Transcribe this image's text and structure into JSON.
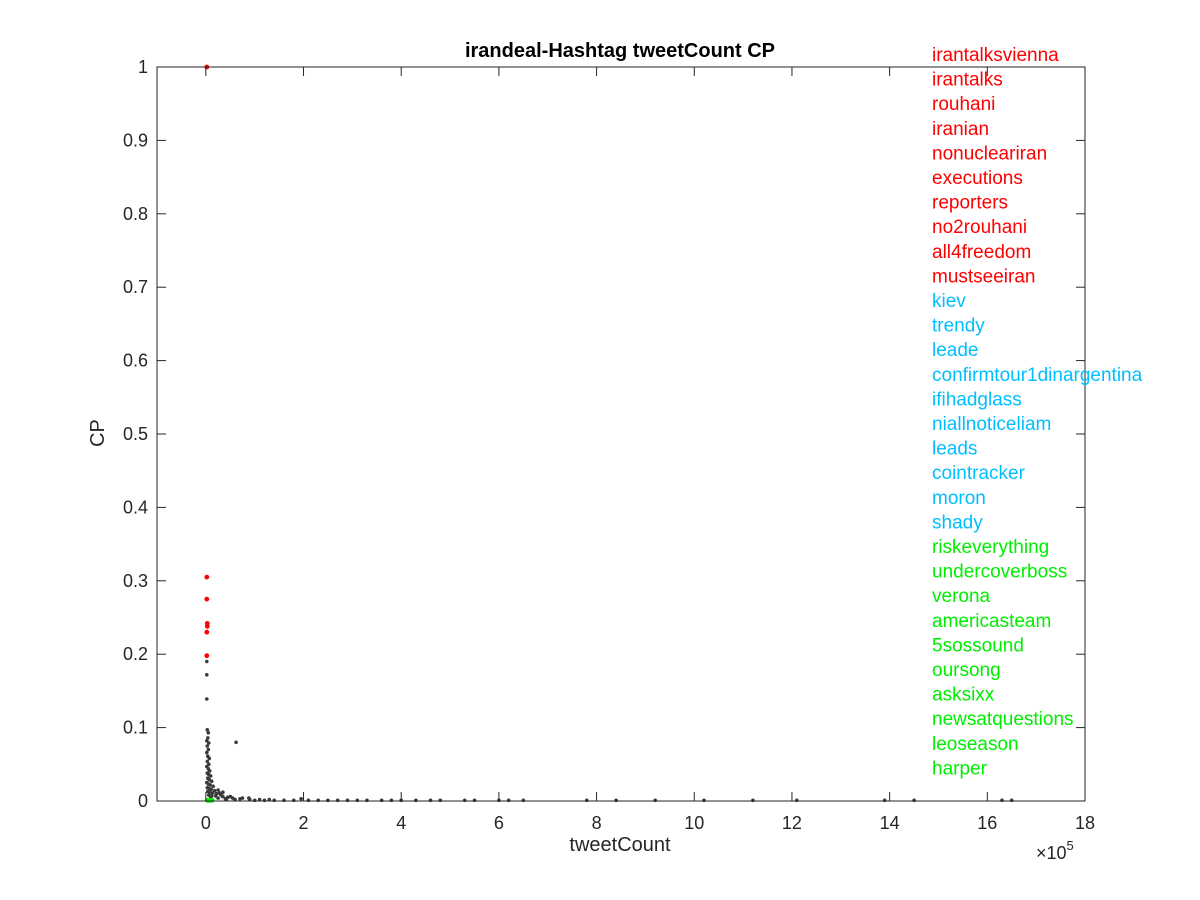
{
  "chart_data": {
    "type": "scatter",
    "title": "irandeal-Hashtag tweetCount CP",
    "xlabel": "tweetCount",
    "ylabel": "CP",
    "x_exponent_label": "×10",
    "x_exponent_power": "5",
    "x_multiplier": 100000,
    "xlim": [
      -1,
      18
    ],
    "ylim": [
      0,
      1
    ],
    "xticks": [
      0,
      2,
      4,
      6,
      8,
      10,
      12,
      14,
      16,
      18
    ],
    "xtick_labels": [
      "0",
      "2",
      "4",
      "6",
      "8",
      "10",
      "12",
      "14",
      "16",
      "18"
    ],
    "yticks": [
      0,
      0.1,
      0.2,
      0.3,
      0.4,
      0.5,
      0.6,
      0.7,
      0.8,
      0.9,
      1
    ],
    "ytick_labels": [
      "0",
      "0.1",
      "0.2",
      "0.3",
      "0.4",
      "0.5",
      "0.6",
      "0.7",
      "0.8",
      "0.9",
      "1"
    ],
    "grid": false,
    "colors": {
      "red": "#ff0000",
      "cyan": "#00bfff",
      "green": "#00ee00",
      "gray": "#3a3a3a"
    },
    "series": [
      {
        "group": "red",
        "color": "#ff0000",
        "points": [
          [
            0.02,
            1.0
          ],
          [
            0.02,
            0.305
          ],
          [
            0.02,
            0.275
          ],
          [
            0.03,
            0.242
          ],
          [
            0.03,
            0.238
          ],
          [
            0.02,
            0.23
          ],
          [
            0.02,
            0.198
          ]
        ]
      },
      {
        "group": "green",
        "color": "#00ee00",
        "points": [
          [
            0.03,
            0.001
          ],
          [
            0.05,
            0.001
          ],
          [
            0.07,
            0.001
          ],
          [
            0.09,
            0.001
          ],
          [
            0.11,
            0.001
          ],
          [
            0.13,
            0.001
          ]
        ]
      },
      {
        "group": "other",
        "color": "#3a3a3a",
        "points": [
          [
            0.02,
            0.19
          ],
          [
            0.02,
            0.172
          ],
          [
            0.02,
            0.139
          ],
          [
            0.03,
            0.097
          ],
          [
            0.05,
            0.093
          ],
          [
            0.04,
            0.086
          ],
          [
            0.02,
            0.082
          ],
          [
            0.06,
            0.079
          ],
          [
            0.03,
            0.075
          ],
          [
            0.05,
            0.07
          ],
          [
            0.02,
            0.066
          ],
          [
            0.04,
            0.061
          ],
          [
            0.07,
            0.058
          ],
          [
            0.03,
            0.054
          ],
          [
            0.06,
            0.05
          ],
          [
            0.02,
            0.047
          ],
          [
            0.05,
            0.044
          ],
          [
            0.08,
            0.041
          ],
          [
            0.03,
            0.038
          ],
          [
            0.06,
            0.036
          ],
          [
            0.1,
            0.034
          ],
          [
            0.04,
            0.031
          ],
          [
            0.07,
            0.029
          ],
          [
            0.12,
            0.027
          ],
          [
            0.02,
            0.025
          ],
          [
            0.05,
            0.023
          ],
          [
            0.09,
            0.022
          ],
          [
            0.15,
            0.02
          ],
          [
            0.03,
            0.018
          ],
          [
            0.07,
            0.017
          ],
          [
            0.11,
            0.016
          ],
          [
            0.18,
            0.014
          ],
          [
            0.04,
            0.013
          ],
          [
            0.08,
            0.012
          ],
          [
            0.14,
            0.011
          ],
          [
            0.22,
            0.01
          ],
          [
            0.3,
            0.009
          ],
          [
            0.06,
            0.008
          ],
          [
            0.12,
            0.007
          ],
          [
            0.2,
            0.007
          ],
          [
            0.35,
            0.006
          ],
          [
            0.45,
            0.005
          ],
          [
            0.1,
            0.005
          ],
          [
            0.25,
            0.004
          ],
          [
            0.55,
            0.004
          ],
          [
            0.7,
            0.003
          ],
          [
            0.4,
            0.003
          ],
          [
            0.9,
            0.002
          ],
          [
            1.1,
            0.002
          ],
          [
            1.3,
            0.002
          ],
          [
            0.6,
            0.002
          ],
          [
            0.28,
            0.011
          ],
          [
            0.33,
            0.007
          ],
          [
            0.5,
            0.006
          ],
          [
            0.75,
            0.004
          ],
          [
            0.42,
            0.002
          ],
          [
            0.62,
            0.08
          ],
          [
            0.88,
            0.004
          ],
          [
            0.25,
            0.015
          ],
          [
            0.35,
            0.012
          ],
          [
            1.0,
            0.001
          ],
          [
            1.2,
            0.001
          ],
          [
            1.4,
            0.001
          ],
          [
            1.6,
            0.001
          ],
          [
            1.8,
            0.001
          ],
          [
            1.95,
            0.003
          ],
          [
            2.1,
            0.001
          ],
          [
            2.3,
            0.001
          ],
          [
            2.5,
            0.001
          ],
          [
            2.7,
            0.001
          ],
          [
            2.9,
            0.001
          ],
          [
            3.1,
            0.001
          ],
          [
            3.3,
            0.001
          ],
          [
            3.6,
            0.001
          ],
          [
            3.8,
            0.001
          ],
          [
            4.0,
            0.001
          ],
          [
            4.3,
            0.001
          ],
          [
            4.6,
            0.001
          ],
          [
            4.8,
            0.001
          ],
          [
            5.3,
            0.001
          ],
          [
            5.5,
            0.001
          ],
          [
            6.0,
            0.001
          ],
          [
            6.2,
            0.001
          ],
          [
            6.5,
            0.001
          ],
          [
            7.8,
            0.001
          ],
          [
            8.4,
            0.001
          ],
          [
            9.2,
            0.001
          ],
          [
            10.2,
            0.001
          ],
          [
            11.2,
            0.001
          ],
          [
            12.1,
            0.001
          ],
          [
            13.9,
            0.001
          ],
          [
            14.5,
            0.001
          ],
          [
            16.3,
            0.001
          ],
          [
            16.5,
            0.001
          ]
        ]
      }
    ],
    "legend_placement": "top-right",
    "legend": [
      {
        "label": "irantalksvienna",
        "color": "#ff0000"
      },
      {
        "label": "irantalks",
        "color": "#ff0000"
      },
      {
        "label": "rouhani",
        "color": "#ff0000"
      },
      {
        "label": "iranian",
        "color": "#ff0000"
      },
      {
        "label": "nonucleariran",
        "color": "#ff0000"
      },
      {
        "label": "executions",
        "color": "#ff0000"
      },
      {
        "label": "reporters",
        "color": "#ff0000"
      },
      {
        "label": "no2rouhani",
        "color": "#ff0000"
      },
      {
        "label": "all4freedom",
        "color": "#ff0000"
      },
      {
        "label": "mustseeiran",
        "color": "#ff0000"
      },
      {
        "label": "kiev",
        "color": "#00bfff"
      },
      {
        "label": "trendy",
        "color": "#00bfff"
      },
      {
        "label": "leade",
        "color": "#00bfff"
      },
      {
        "label": "confirmtour1dinargentina",
        "color": "#00bfff"
      },
      {
        "label": "ifihadglass",
        "color": "#00bfff"
      },
      {
        "label": "niallnoticeliam",
        "color": "#00bfff"
      },
      {
        "label": "leads",
        "color": "#00bfff"
      },
      {
        "label": "cointracker",
        "color": "#00bfff"
      },
      {
        "label": "moron",
        "color": "#00bfff"
      },
      {
        "label": "shady",
        "color": "#00bfff"
      },
      {
        "label": "riskeverything",
        "color": "#00ee00"
      },
      {
        "label": "undercoverboss",
        "color": "#00ee00"
      },
      {
        "label": "verona",
        "color": "#00ee00"
      },
      {
        "label": "americasteam",
        "color": "#00ee00"
      },
      {
        "label": "5sossound",
        "color": "#00ee00"
      },
      {
        "label": "oursong",
        "color": "#00ee00"
      },
      {
        "label": "asksixx",
        "color": "#00ee00"
      },
      {
        "label": "newsatquestions",
        "color": "#00ee00"
      },
      {
        "label": "leoseason",
        "color": "#00ee00"
      },
      {
        "label": "harper",
        "color": "#00ee00"
      }
    ]
  }
}
